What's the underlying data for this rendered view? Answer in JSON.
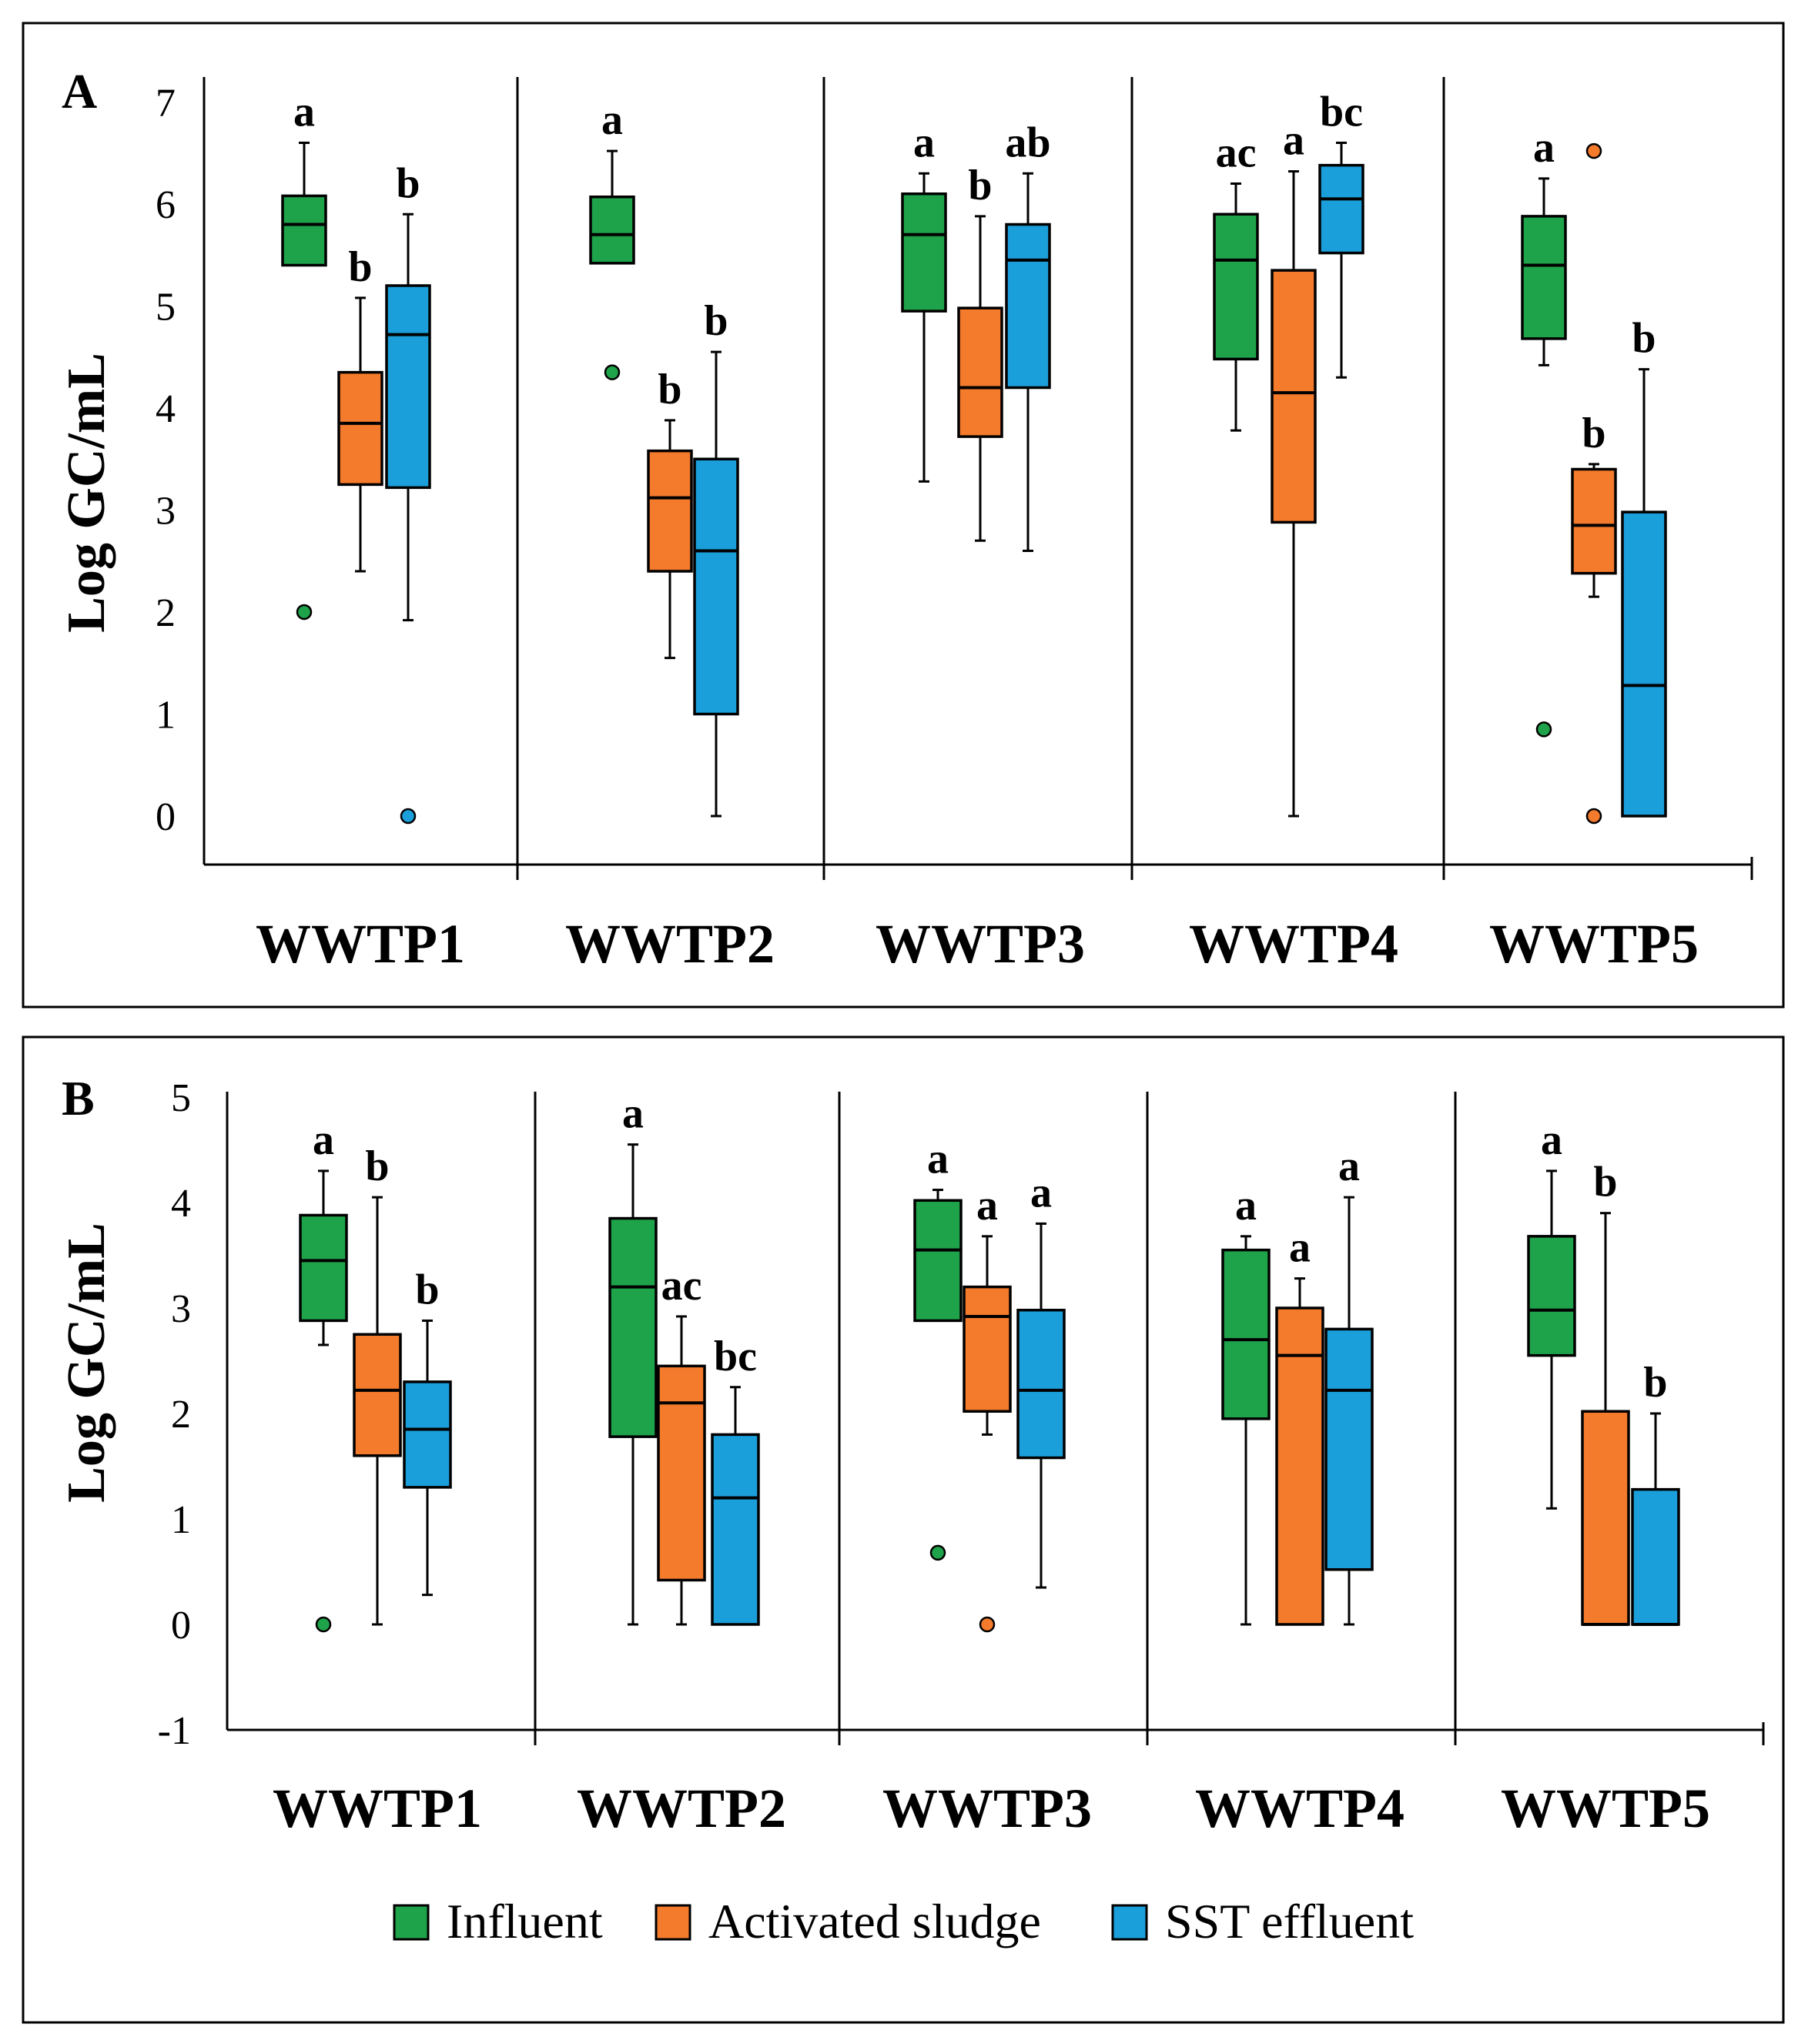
{
  "colors": {
    "influent": "#1fa34a",
    "activated_sludge": "#f47a2c",
    "sst_effluent": "#1b9fdb"
  },
  "legend": {
    "influent": "Influent",
    "activated_sludge": "Activated sludge",
    "sst_effluent": "SST effluent"
  },
  "chart_data": [
    {
      "type": "box",
      "panel": "A",
      "ylabel": "Log GC/mL",
      "ylim": [
        -0.5,
        7
      ],
      "yticks": [
        0,
        1,
        2,
        3,
        4,
        5,
        6,
        7
      ],
      "categories": [
        "WWTP1",
        "WWTP2",
        "WWTP3",
        "WWTP4",
        "WWTP5"
      ],
      "series": [
        {
          "name": "Influent",
          "key": "influent",
          "boxes": [
            {
              "min": 5.4,
              "q1": 5.4,
              "median": 5.8,
              "q3": 6.08,
              "max": 6.6,
              "outliers": [
                2.0
              ],
              "label": "a"
            },
            {
              "min": 5.42,
              "q1": 5.42,
              "median": 5.7,
              "q3": 6.07,
              "max": 6.52,
              "outliers": [
                4.35
              ],
              "label": "a"
            },
            {
              "min": 3.28,
              "q1": 4.95,
              "median": 5.7,
              "q3": 6.1,
              "max": 6.3,
              "outliers": [],
              "label": "a"
            },
            {
              "min": 3.78,
              "q1": 4.48,
              "median": 5.45,
              "q3": 5.9,
              "max": 6.2,
              "outliers": [],
              "label": "ac"
            },
            {
              "min": 4.42,
              "q1": 4.68,
              "median": 5.4,
              "q3": 5.88,
              "max": 6.25,
              "outliers": [
                0.85
              ],
              "label": "a"
            }
          ]
        },
        {
          "name": "Activated sludge",
          "key": "activated_sludge",
          "boxes": [
            {
              "min": 2.4,
              "q1": 3.25,
              "median": 3.85,
              "q3": 4.35,
              "max": 5.08,
              "outliers": [],
              "label": "b"
            },
            {
              "min": 1.55,
              "q1": 2.4,
              "median": 3.12,
              "q3": 3.58,
              "max": 3.88,
              "outliers": [],
              "label": "b"
            },
            {
              "min": 2.7,
              "q1": 3.72,
              "median": 4.2,
              "q3": 4.98,
              "max": 5.88,
              "outliers": [],
              "label": "b"
            },
            {
              "min": 0.0,
              "q1": 2.88,
              "median": 4.15,
              "q3": 5.35,
              "max": 6.32,
              "outliers": [],
              "label": "a"
            },
            {
              "min": 2.15,
              "q1": 2.38,
              "median": 2.85,
              "q3": 3.4,
              "max": 3.45,
              "outliers": [
                6.52,
                0.0
              ],
              "label": "b"
            }
          ]
        },
        {
          "name": "SST effluent",
          "key": "sst_effluent",
          "boxes": [
            {
              "min": 1.92,
              "q1": 3.22,
              "median": 4.72,
              "q3": 5.2,
              "max": 5.9,
              "outliers": [
                0.0
              ],
              "label": "b"
            },
            {
              "min": 0.0,
              "q1": 1.0,
              "median": 2.6,
              "q3": 3.5,
              "max": 4.55,
              "outliers": [],
              "label": "b"
            },
            {
              "min": 2.6,
              "q1": 4.2,
              "median": 5.45,
              "q3": 5.8,
              "max": 6.3,
              "outliers": [],
              "label": "ab"
            },
            {
              "min": 4.3,
              "q1": 5.52,
              "median": 6.05,
              "q3": 6.38,
              "max": 6.6,
              "outliers": [],
              "label": "bc"
            },
            {
              "min": 0.0,
              "q1": 0.0,
              "median": 1.28,
              "q3": 2.98,
              "max": 4.38,
              "outliers": [],
              "label": "b"
            }
          ]
        }
      ]
    },
    {
      "type": "box",
      "panel": "B",
      "ylabel": "Log GC/mL",
      "ylim": [
        -1,
        5
      ],
      "yticks": [
        -1,
        0,
        1,
        2,
        3,
        4,
        5
      ],
      "categories": [
        "WWTP1",
        "WWTP2",
        "WWTP3",
        "WWTP4",
        "WWTP5"
      ],
      "series": [
        {
          "name": "Influent",
          "key": "influent",
          "boxes": [
            {
              "min": 2.65,
              "q1": 2.88,
              "median": 3.45,
              "q3": 3.88,
              "max": 4.3,
              "outliers": [
                0.0
              ],
              "label": "a"
            },
            {
              "min": 0.0,
              "q1": 1.78,
              "median": 3.2,
              "q3": 3.85,
              "max": 4.55,
              "outliers": [],
              "label": "a"
            },
            {
              "min": 2.88,
              "q1": 2.88,
              "median": 3.55,
              "q3": 4.02,
              "max": 4.12,
              "outliers": [
                0.68
              ],
              "label": "a"
            },
            {
              "min": 0.0,
              "q1": 1.95,
              "median": 2.7,
              "q3": 3.55,
              "max": 3.68,
              "outliers": [],
              "label": "a"
            },
            {
              "min": 1.1,
              "q1": 2.55,
              "median": 2.98,
              "q3": 3.68,
              "max": 4.3,
              "outliers": [],
              "label": "a"
            }
          ]
        },
        {
          "name": "Activated sludge",
          "key": "activated_sludge",
          "boxes": [
            {
              "min": 0.0,
              "q1": 1.6,
              "median": 2.22,
              "q3": 2.75,
              "max": 4.05,
              "outliers": [],
              "label": "b"
            },
            {
              "min": 0.0,
              "q1": 0.42,
              "median": 2.1,
              "q3": 2.45,
              "max": 2.92,
              "outliers": [],
              "label": "ac"
            },
            {
              "min": 1.8,
              "q1": 2.02,
              "median": 2.92,
              "q3": 3.2,
              "max": 3.68,
              "outliers": [
                0.0
              ],
              "label": "a"
            },
            {
              "min": 0.0,
              "q1": 0.0,
              "median": 2.55,
              "q3": 3.0,
              "max": 3.28,
              "outliers": [],
              "label": "a"
            },
            {
              "min": 0.0,
              "q1": 0.0,
              "median": 0.0,
              "q3": 2.02,
              "max": 3.9,
              "outliers": [],
              "label": "b"
            }
          ]
        },
        {
          "name": "SST effluent",
          "key": "sst_effluent",
          "boxes": [
            {
              "min": 0.28,
              "q1": 1.3,
              "median": 1.85,
              "q3": 2.3,
              "max": 2.88,
              "outliers": [],
              "label": "b"
            },
            {
              "min": 0.0,
              "q1": 0.0,
              "median": 1.2,
              "q3": 1.8,
              "max": 2.25,
              "outliers": [],
              "label": "bc"
            },
            {
              "min": 0.35,
              "q1": 1.58,
              "median": 2.22,
              "q3": 2.98,
              "max": 3.8,
              "outliers": [],
              "label": "a"
            },
            {
              "min": 0.0,
              "q1": 0.52,
              "median": 2.22,
              "q3": 2.8,
              "max": 4.05,
              "outliers": [],
              "label": "a"
            },
            {
              "min": 0.0,
              "q1": 0.0,
              "median": 0.0,
              "q3": 1.28,
              "max": 2.0,
              "outliers": [],
              "label": "b"
            }
          ]
        }
      ]
    }
  ]
}
